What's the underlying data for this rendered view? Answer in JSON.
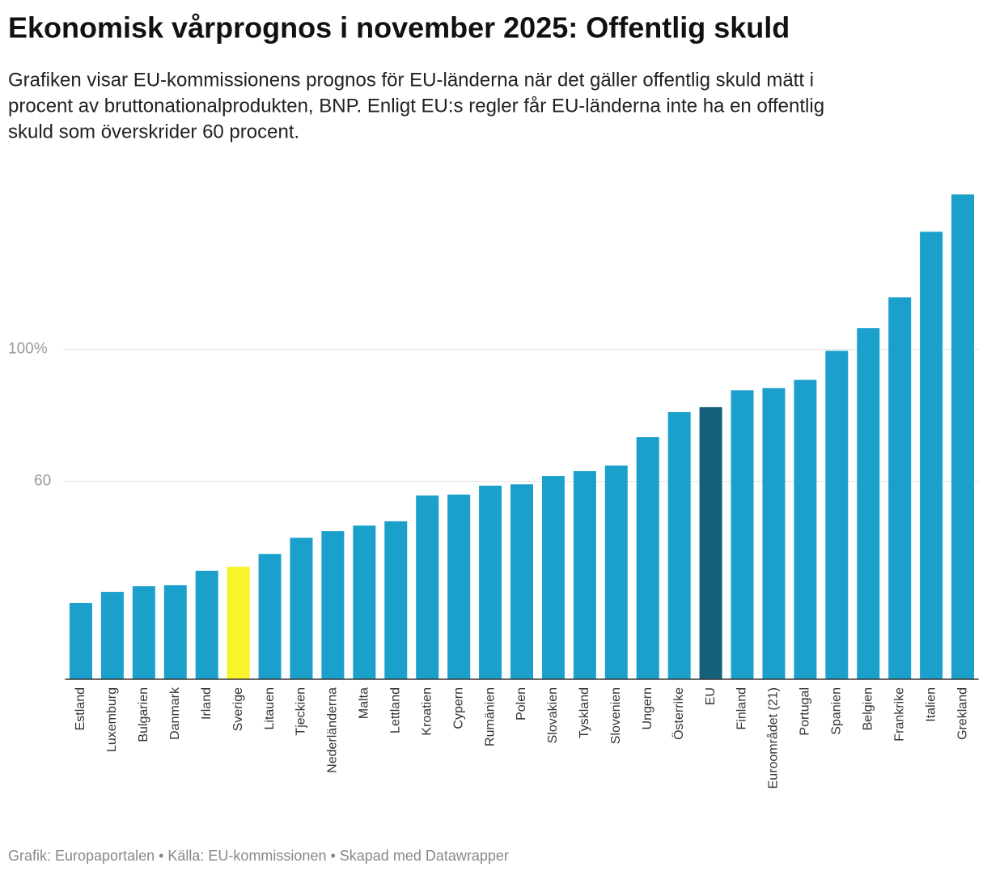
{
  "chart_data": {
    "type": "bar",
    "title": "Ekonomisk vårprognos i november 2025: Offentlig skuld",
    "subtitle_lines": [
      "Grafiken visar EU-kommissionens prognos för EU-länderna när det gäller offentlig skuld mätt i",
      "procent av bruttonationalprodukten, BNP. Enligt EU:s regler får EU-länderna inte ha en offentlig",
      "skuld som överskrider 60 procent."
    ],
    "footer": "Grafik: Europaportalen • Källa: EU-kommissionen • Skapad med Datawrapper",
    "categories": [
      "Estland",
      "Luxemburg",
      "Bulgarien",
      "Danmark",
      "Irland",
      "Sverige",
      "Litauen",
      "Tjeckien",
      "Nederländerna",
      "Malta",
      "Lettland",
      "Kroatien",
      "Cypern",
      "Rumänien",
      "Polen",
      "Slovakien",
      "Tyskland",
      "Slovenien",
      "Ungern",
      "Österrike",
      "EU",
      "Finland",
      "Euroområdet (21)",
      "Portugal",
      "Spanien",
      "Belgien",
      "Frankrike",
      "Italien",
      "Grekland"
    ],
    "values": [
      23.1,
      26.5,
      28.2,
      28.5,
      32.9,
      34.1,
      38.0,
      42.9,
      44.9,
      46.6,
      47.9,
      55.7,
      56.0,
      58.7,
      59.1,
      61.6,
      63.1,
      64.8,
      73.4,
      81.0,
      82.5,
      87.6,
      88.3,
      90.8,
      99.6,
      106.5,
      115.8,
      135.7,
      147.0
    ],
    "colors": [
      "#1ba0cc",
      "#1ba0cc",
      "#1ba0cc",
      "#1ba0cc",
      "#1ba0cc",
      "#f8f32b",
      "#1ba0cc",
      "#1ba0cc",
      "#1ba0cc",
      "#1ba0cc",
      "#1ba0cc",
      "#1ba0cc",
      "#1ba0cc",
      "#1ba0cc",
      "#1ba0cc",
      "#1ba0cc",
      "#1ba0cc",
      "#1ba0cc",
      "#1ba0cc",
      "#1ba0cc",
      "#15607a",
      "#1ba0cc",
      "#1ba0cc",
      "#1ba0cc",
      "#1ba0cc",
      "#1ba0cc",
      "#1ba0cc",
      "#1ba0cc",
      "#1ba0cc"
    ],
    "ylim": [
      0,
      150
    ],
    "yticks": [
      60,
      {
        "value": 100,
        "label": "100%"
      }
    ],
    "grid": true
  }
}
